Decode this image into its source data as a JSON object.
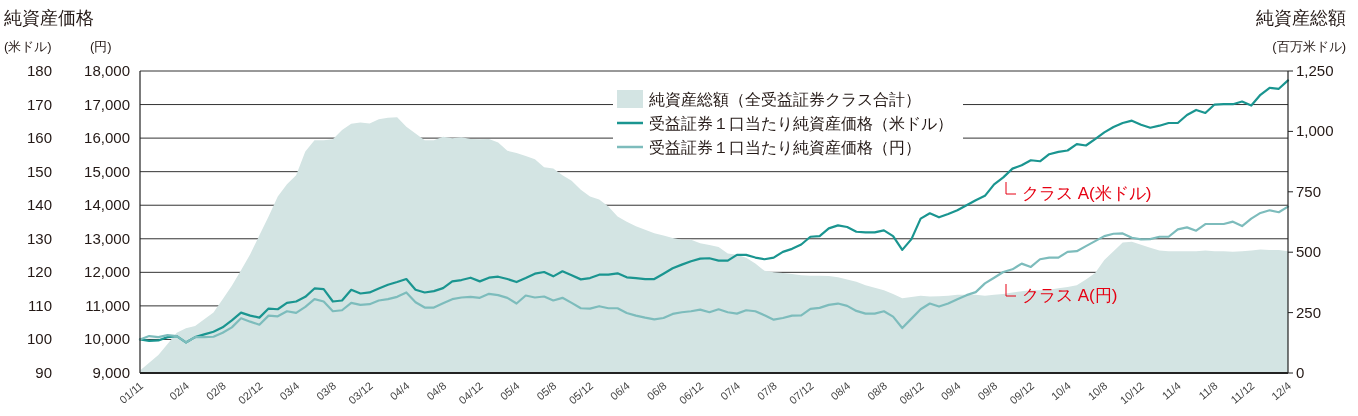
{
  "chart_data": {
    "type": "line",
    "ylabel": "純資産価格",
    "y2label": "純資産総額",
    "annotations": [
      "(米ドル)",
      "(円)",
      "(百万米ドル)",
      "クラス A(米ドル)",
      "クラス A(円)"
    ],
    "x": [
      "2001-11",
      "2001-12",
      "2002-01",
      "2002-02",
      "2002-03",
      "2002-04",
      "2002-05",
      "2002-06",
      "2002-07",
      "2002-08",
      "2002-09",
      "2002-10",
      "2002-11",
      "2002-12",
      "2003-01",
      "2003-02",
      "2003-03",
      "2003-04",
      "2003-05",
      "2003-06",
      "2003-07",
      "2003-08",
      "2003-09",
      "2003-10",
      "2003-11",
      "2003-12",
      "2004-01",
      "2004-02",
      "2004-03",
      "2004-04",
      "2004-05",
      "2004-06",
      "2004-07",
      "2004-08",
      "2004-09",
      "2004-10",
      "2004-11",
      "2004-12",
      "2005-01",
      "2005-02",
      "2005-03",
      "2005-04",
      "2005-05",
      "2005-06",
      "2005-07",
      "2005-08",
      "2005-09",
      "2005-10",
      "2005-11",
      "2005-12",
      "2006-01",
      "2006-02",
      "2006-03",
      "2006-04",
      "2006-05",
      "2006-06",
      "2006-07",
      "2006-08",
      "2006-09",
      "2006-10",
      "2006-11",
      "2006-12",
      "2007-01",
      "2007-02",
      "2007-03",
      "2007-04",
      "2007-05",
      "2007-06",
      "2007-07",
      "2007-08",
      "2007-09",
      "2007-10",
      "2007-11",
      "2007-12",
      "2008-01",
      "2008-02",
      "2008-03",
      "2008-04",
      "2008-05",
      "2008-06",
      "2008-07",
      "2008-08",
      "2008-09",
      "2008-10",
      "2008-11",
      "2008-12",
      "2009-01",
      "2009-02",
      "2009-03",
      "2009-04",
      "2009-05",
      "2009-06",
      "2009-07",
      "2009-08",
      "2009-09",
      "2009-10",
      "2009-11",
      "2009-12",
      "2010-01",
      "2010-02",
      "2010-03",
      "2010-04",
      "2010-05",
      "2010-06",
      "2010-07",
      "2010-08",
      "2010-09",
      "2010-10",
      "2010-11",
      "2010-12",
      "2011-01",
      "2011-02",
      "2011-03",
      "2011-04",
      "2011-05",
      "2011-06",
      "2011-07",
      "2011-08",
      "2011-09",
      "2011-10",
      "2011-11",
      "2011-12",
      "2012-01",
      "2012-02",
      "2012-03",
      "2012-04"
    ],
    "series": [
      {
        "name": "純資産総額（全受益証券クラス合計）",
        "type": "area",
        "axis": "y2",
        "color": "#d3e4e3",
        "values": [
          10,
          42,
          74,
          120,
          167,
          185,
          195,
          222,
          250,
          305,
          361,
          425,
          491,
          570,
          648,
          731,
          781,
          818,
          917,
          963,
          963,
          967,
          1006,
          1032,
          1037,
          1033,
          1050,
          1056,
          1059,
          1019,
          991,
          963,
          963,
          978,
          972,
          976,
          969,
          967,
          969,
          954,
          920,
          911,
          898,
          885,
          852,
          846,
          818,
          796,
          759,
          731,
          718,
          689,
          648,
          626,
          607,
          593,
          578,
          569,
          559,
          552,
          552,
          537,
          530,
          522,
          495,
          489,
          477,
          453,
          423,
          417,
          414,
          410,
          405,
          403,
          403,
          401,
          396,
          387,
          378,
          363,
          353,
          342,
          327,
          309,
          315,
          320,
          317,
          318,
          320,
          324,
          324,
          324,
          320,
          324,
          327,
          333,
          338,
          342,
          342,
          345,
          351,
          356,
          363,
          387,
          414,
          468,
          504,
          540,
          543,
          531,
          518,
          507,
          504,
          504,
          504,
          504,
          507,
          504,
          504,
          502,
          504,
          507,
          511,
          509,
          509,
          504
        ]
      },
      {
        "name": "受益証券１口当たり純資産価格（米ドル）",
        "type": "line",
        "axis": "y",
        "color": "#1a9590",
        "values": [
          100,
          99.6,
          99.7,
          100.7,
          101,
          99.1,
          100.7,
          101.5,
          102.3,
          103.6,
          105.7,
          108,
          107.1,
          106.5,
          109.2,
          109,
          110.9,
          111.3,
          112.7,
          115.2,
          115,
          111.3,
          111.6,
          114.8,
          113.7,
          114,
          115.2,
          116.3,
          117.1,
          118,
          114.8,
          114,
          114.4,
          115.3,
          117.3,
          117.7,
          118.4,
          117.3,
          118.4,
          118.7,
          118,
          117.1,
          118.3,
          119.6,
          120.1,
          118.8,
          120.3,
          119.1,
          117.9,
          118.3,
          119.3,
          119.3,
          119.7,
          118.5,
          118.3,
          118,
          118,
          119.6,
          121.2,
          122.3,
          123.3,
          124.1,
          124.2,
          123.5,
          123.5,
          125.2,
          125.2,
          124.4,
          123.9,
          124.4,
          126.1,
          127,
          128.3,
          130.6,
          130.8,
          133.1,
          134,
          133.5,
          132.1,
          131.9,
          131.9,
          132.5,
          130.8,
          126.7,
          129.9,
          136,
          137.6,
          136.4,
          137.4,
          138.5,
          140,
          141.5,
          142.8,
          146.2,
          148.3,
          150.9,
          151.9,
          153.4,
          153.1,
          155.2,
          155.9,
          156.3,
          158.2,
          157.8,
          159.7,
          161.7,
          163.3,
          164.5,
          165.2,
          164,
          163.1,
          163.7,
          164.5,
          164.5,
          166.9,
          168.4,
          167.5,
          170,
          170.1,
          170.1,
          170.9,
          169.7,
          172.9,
          175,
          174.7,
          177.2
        ]
      },
      {
        "name": "受益証券１口当たり純資産価格（円）",
        "type": "line",
        "axis": "y3",
        "color": "#7dbcbc",
        "values": [
          10000,
          10100,
          10070,
          10130,
          10100,
          9910,
          10070,
          10070,
          10080,
          10200,
          10360,
          10630,
          10530,
          10440,
          10710,
          10690,
          10840,
          10790,
          10970,
          11200,
          11130,
          10840,
          10870,
          11090,
          11030,
          11050,
          11160,
          11200,
          11270,
          11400,
          11110,
          10950,
          10950,
          11080,
          11200,
          11250,
          11270,
          11240,
          11360,
          11320,
          11240,
          11070,
          11310,
          11250,
          11280,
          11160,
          11240,
          11090,
          10930,
          10920,
          10990,
          10930,
          10930,
          10790,
          10710,
          10650,
          10600,
          10640,
          10760,
          10810,
          10840,
          10890,
          10810,
          10900,
          10810,
          10770,
          10870,
          10840,
          10720,
          10590,
          10640,
          10710,
          10720,
          10910,
          10940,
          11030,
          11070,
          11000,
          10850,
          10770,
          10770,
          10840,
          10680,
          10340,
          10620,
          10900,
          11070,
          10980,
          11070,
          11200,
          11320,
          11410,
          11670,
          11840,
          12010,
          12090,
          12260,
          12160,
          12390,
          12440,
          12440,
          12610,
          12630,
          12780,
          12930,
          13080,
          13150,
          13160,
          13030,
          12980,
          12990,
          13060,
          13060,
          13280,
          13340,
          13240,
          13440,
          13440,
          13440,
          13510,
          13380,
          13600,
          13770,
          13850,
          13790,
          13960
        ]
      }
    ],
    "xlim": [
      "2001-11",
      "2012-04"
    ],
    "xticks": [
      {
        "value": "2001-11",
        "label": "01/11"
      },
      {
        "value": "2002-04",
        "label": "02/4"
      },
      {
        "value": "2002-08",
        "label": "02/8"
      },
      {
        "value": "2002-12",
        "label": "02/12"
      },
      {
        "value": "2003-04",
        "label": "03/4"
      },
      {
        "value": "2003-08",
        "label": "03/8"
      },
      {
        "value": "2003-12",
        "label": "03/12"
      },
      {
        "value": "2004-04",
        "label": "04/4"
      },
      {
        "value": "2004-08",
        "label": "04/8"
      },
      {
        "value": "2004-12",
        "label": "04/12"
      },
      {
        "value": "2005-04",
        "label": "05/4"
      },
      {
        "value": "2005-08",
        "label": "05/8"
      },
      {
        "value": "2005-12",
        "label": "05/12"
      },
      {
        "value": "2006-04",
        "label": "06/4"
      },
      {
        "value": "2006-08",
        "label": "06/8"
      },
      {
        "value": "2006-12",
        "label": "06/12"
      },
      {
        "value": "2007-04",
        "label": "07/4"
      },
      {
        "value": "2007-08",
        "label": "07/8"
      },
      {
        "value": "2007-12",
        "label": "07/12"
      },
      {
        "value": "2008-04",
        "label": "08/4"
      },
      {
        "value": "2008-08",
        "label": "08/8"
      },
      {
        "value": "2008-12",
        "label": "08/12"
      },
      {
        "value": "2009-04",
        "label": "09/4"
      },
      {
        "value": "2009-08",
        "label": "09/8"
      },
      {
        "value": "2009-12",
        "label": "09/12"
      },
      {
        "value": "2010-04",
        "label": "10/4"
      },
      {
        "value": "2010-08",
        "label": "10/8"
      },
      {
        "value": "2010-12",
        "label": "10/12"
      },
      {
        "value": "2011-04",
        "label": "11/4"
      },
      {
        "value": "2011-08",
        "label": "11/8"
      },
      {
        "value": "2011-12",
        "label": "11/12"
      },
      {
        "value": "2012-04",
        "label": "12/4"
      }
    ],
    "ylim": [
      90,
      180
    ],
    "yticks": [
      90,
      100,
      110,
      120,
      130,
      140,
      150,
      160,
      170,
      180
    ],
    "y3lim": [
      9000,
      18000
    ],
    "y3ticks": [
      {
        "value": 9000,
        "label": "9,000"
      },
      {
        "value": 10000,
        "label": "10,000"
      },
      {
        "value": 11000,
        "label": "11,000"
      },
      {
        "value": 12000,
        "label": "12,000"
      },
      {
        "value": 13000,
        "label": "13,000"
      },
      {
        "value": 14000,
        "label": "14,000"
      },
      {
        "value": 15000,
        "label": "15,000"
      },
      {
        "value": 16000,
        "label": "16,000"
      },
      {
        "value": 17000,
        "label": "17,000"
      },
      {
        "value": 18000,
        "label": "18,000"
      }
    ],
    "y2lim": [
      0,
      1250
    ],
    "y2ticks": [
      0,
      250,
      500,
      750,
      {
        "value": 1000,
        "label": "1,000"
      },
      {
        "value": 1250,
        "label": "1,250"
      }
    ],
    "grid": "y",
    "legend": "top",
    "marker": "none",
    "line_style": "solid"
  }
}
